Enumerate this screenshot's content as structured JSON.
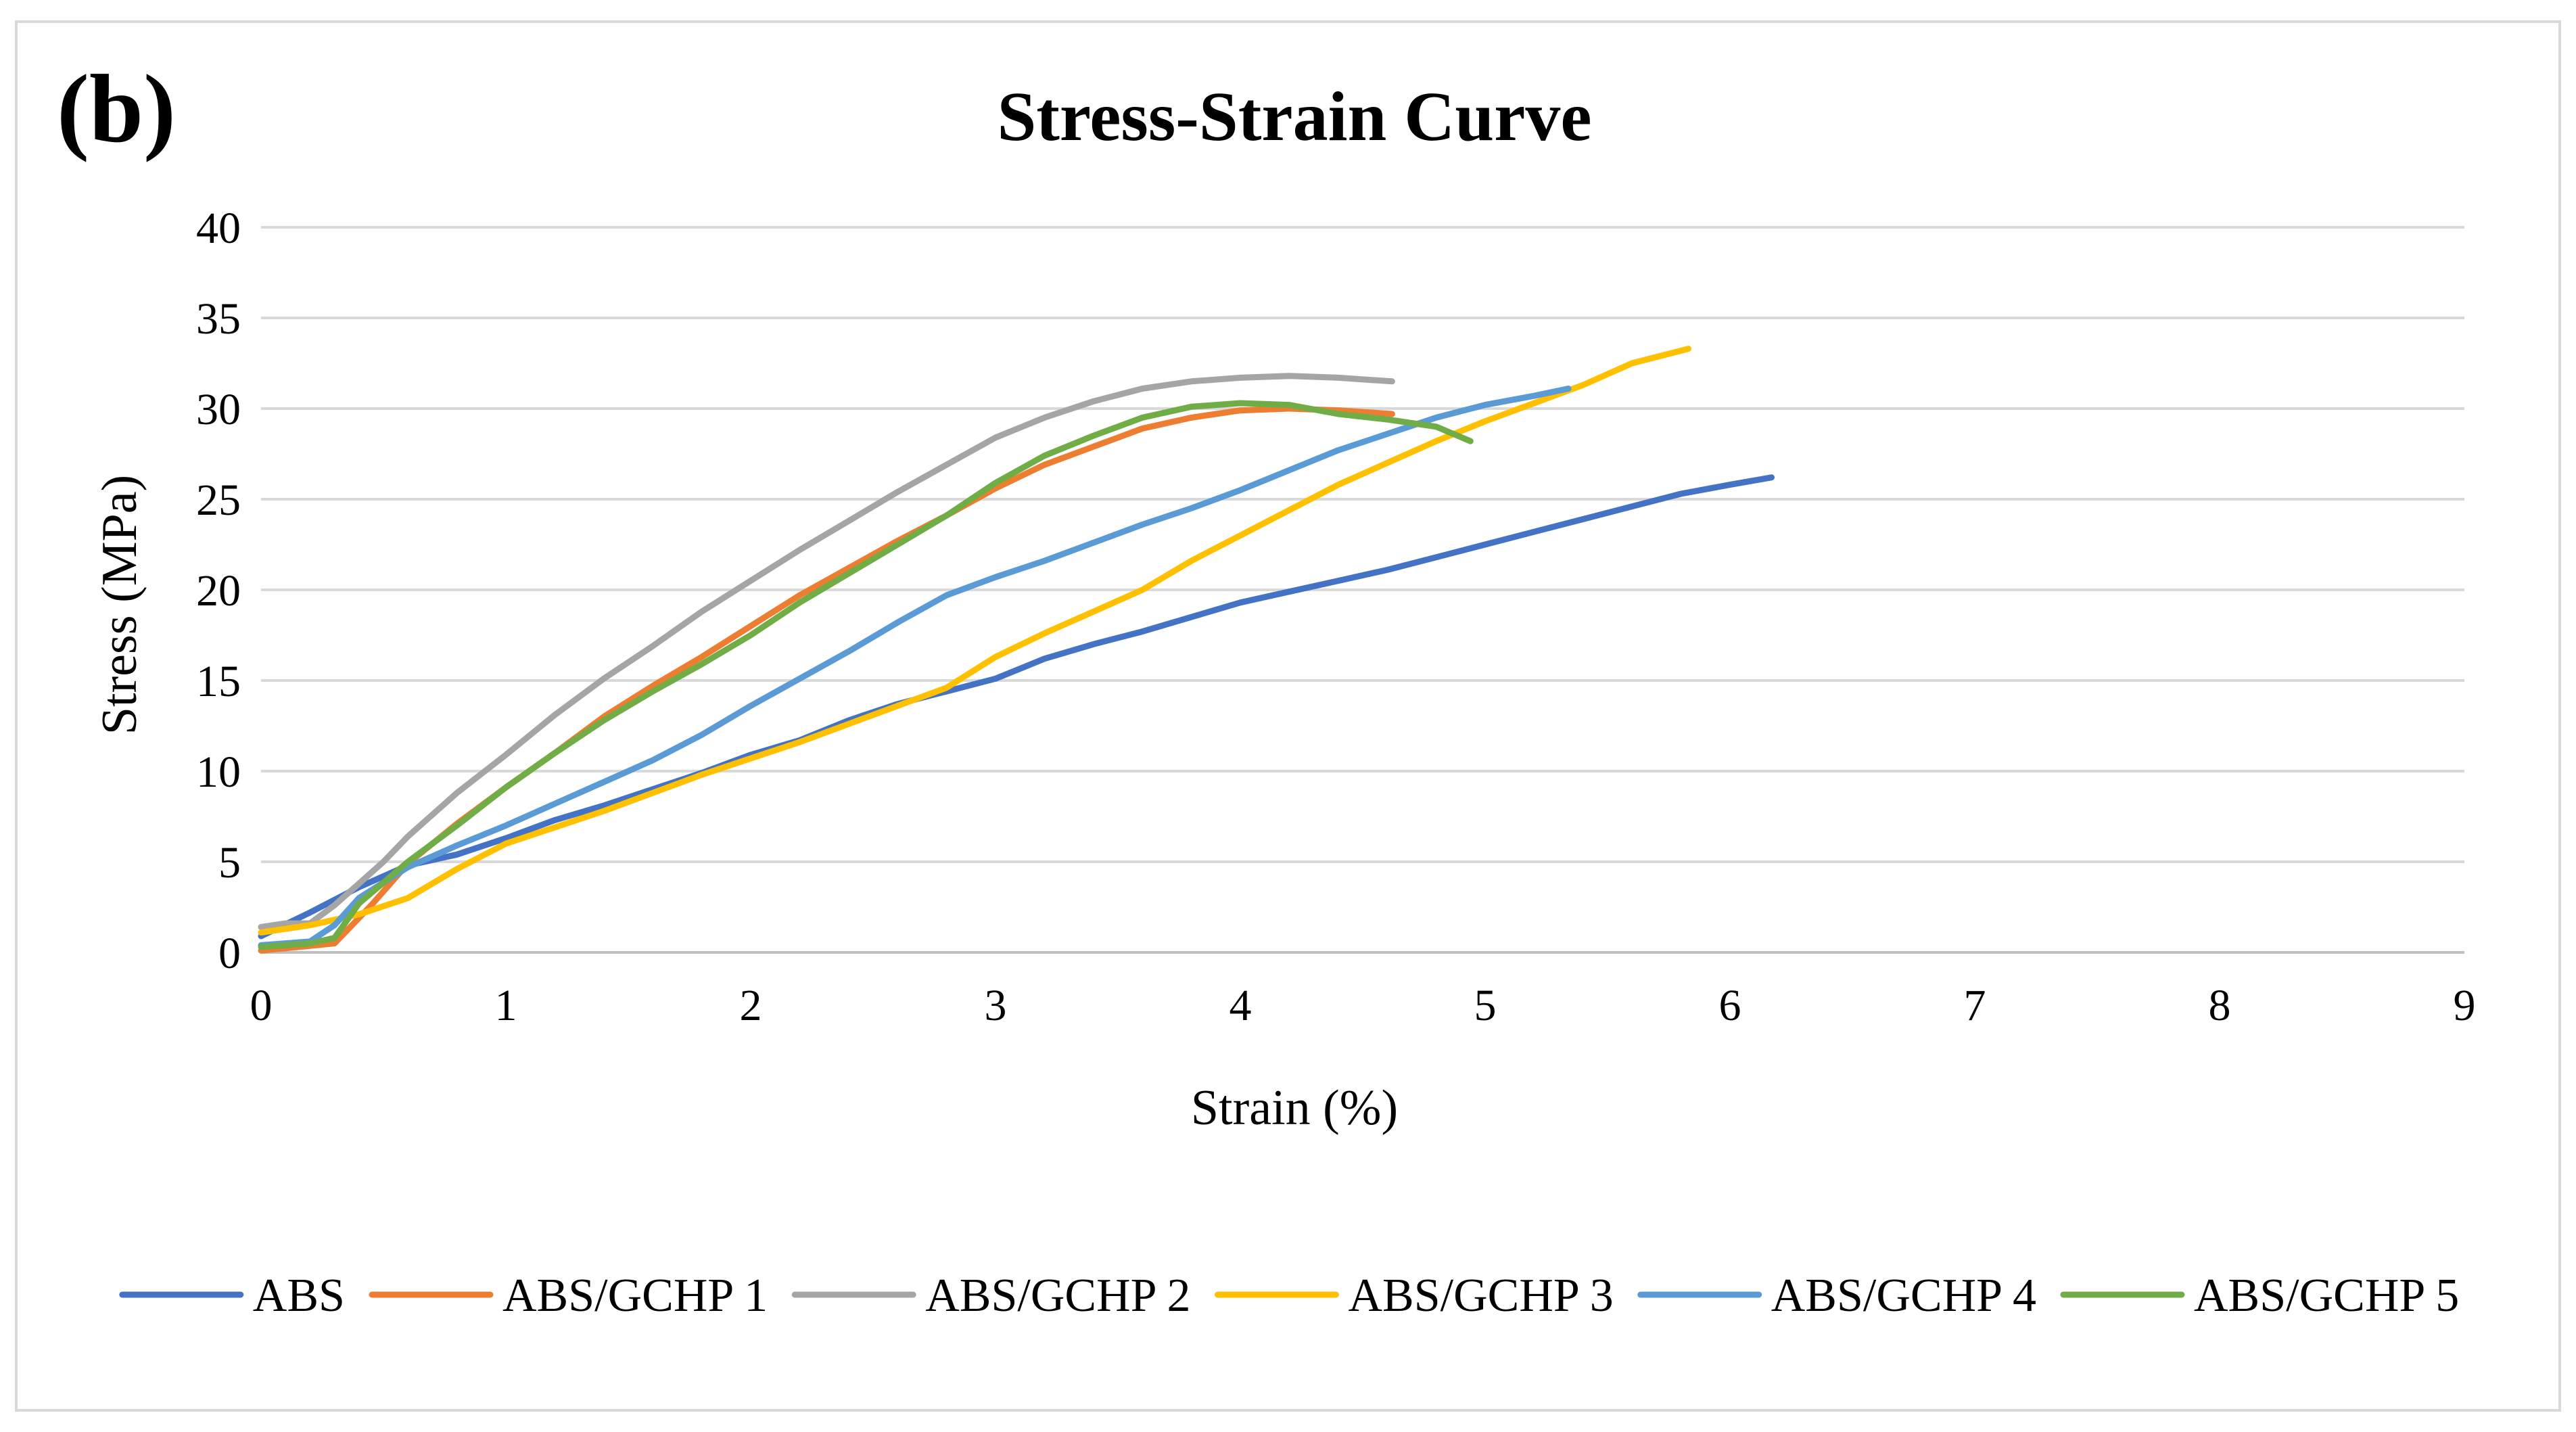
{
  "panel_label": "(b)",
  "chart_data": {
    "type": "line",
    "title": "Stress-Strain Curve",
    "xlabel": "Strain (%)",
    "ylabel": "Stress (MPa)",
    "xlim": [
      0,
      9
    ],
    "ylim": [
      0,
      40
    ],
    "x_ticks": [
      0,
      1,
      2,
      3,
      4,
      5,
      6,
      7,
      8,
      9
    ],
    "y_ticks": [
      0,
      5,
      10,
      15,
      20,
      25,
      30,
      35,
      40
    ],
    "grid": true,
    "legend_position": "bottom",
    "series": [
      {
        "name": "ABS",
        "color": "#4472c4",
        "x": [
          0,
          0.2,
          0.4,
          0.6,
          0.8,
          1.0,
          1.2,
          1.4,
          1.6,
          1.8,
          2.0,
          2.2,
          2.4,
          2.6,
          2.8,
          3.0,
          3.2,
          3.4,
          3.6,
          3.8,
          4.0,
          4.2,
          4.4,
          4.6,
          4.8,
          5.0,
          5.2,
          5.4,
          5.6,
          5.8,
          6.0,
          6.17
        ],
        "y": [
          0.9,
          2.2,
          3.6,
          4.8,
          5.4,
          6.3,
          7.3,
          8.1,
          9.0,
          9.9,
          10.9,
          11.7,
          12.8,
          13.7,
          14.4,
          15.1,
          16.2,
          17.0,
          17.7,
          18.5,
          19.3,
          19.9,
          20.5,
          21.1,
          21.8,
          22.5,
          23.2,
          23.9,
          24.6,
          25.3,
          25.8,
          26.2
        ]
      },
      {
        "name": "ABS/GCHP 1",
        "color": "#ed7d31",
        "x": [
          0,
          0.15,
          0.3,
          0.45,
          0.6,
          0.8,
          1.0,
          1.2,
          1.4,
          1.6,
          1.8,
          2.0,
          2.2,
          2.4,
          2.6,
          2.8,
          3.0,
          3.2,
          3.4,
          3.6,
          3.8,
          4.0,
          4.2,
          4.4,
          4.62
        ],
        "y": [
          0.1,
          0.3,
          0.5,
          2.6,
          4.9,
          7.1,
          9.1,
          11.0,
          13.0,
          14.7,
          16.3,
          18.0,
          19.7,
          21.2,
          22.7,
          24.1,
          25.6,
          26.9,
          27.9,
          28.9,
          29.5,
          29.9,
          30.0,
          29.9,
          29.7
        ]
      },
      {
        "name": "ABS/GCHP 2",
        "color": "#a5a5a5",
        "x": [
          0,
          0.1,
          0.2,
          0.3,
          0.4,
          0.5,
          0.6,
          0.8,
          1.0,
          1.2,
          1.4,
          1.6,
          1.8,
          2.0,
          2.2,
          2.4,
          2.6,
          2.8,
          3.0,
          3.2,
          3.4,
          3.6,
          3.8,
          4.0,
          4.2,
          4.4,
          4.62
        ],
        "y": [
          1.4,
          1.6,
          1.6,
          2.6,
          3.8,
          5.0,
          6.4,
          8.8,
          10.9,
          13.1,
          15.1,
          16.9,
          18.8,
          20.5,
          22.2,
          23.8,
          25.4,
          26.9,
          28.4,
          29.5,
          30.4,
          31.1,
          31.5,
          31.7,
          31.8,
          31.7,
          31.5
        ]
      },
      {
        "name": "ABS/GCHP 3",
        "color": "#ffc000",
        "x": [
          0,
          0.2,
          0.4,
          0.6,
          0.8,
          1.0,
          1.2,
          1.4,
          1.6,
          1.8,
          2.0,
          2.2,
          2.4,
          2.6,
          2.8,
          3.0,
          3.2,
          3.4,
          3.6,
          3.8,
          4.0,
          4.2,
          4.4,
          4.6,
          4.8,
          5.0,
          5.2,
          5.4,
          5.6,
          5.83
        ],
        "y": [
          1.1,
          1.5,
          2.1,
          3.0,
          4.6,
          6.0,
          6.9,
          7.8,
          8.8,
          9.8,
          10.7,
          11.6,
          12.6,
          13.6,
          14.6,
          16.3,
          17.6,
          18.8,
          20.0,
          21.6,
          23.0,
          24.4,
          25.8,
          27.0,
          28.2,
          29.3,
          30.3,
          31.3,
          32.5,
          33.3
        ]
      },
      {
        "name": "ABS/GCHP 4",
        "color": "#5b9bd5",
        "x": [
          0,
          0.2,
          0.3,
          0.4,
          0.6,
          0.8,
          1.0,
          1.2,
          1.4,
          1.6,
          1.8,
          2.0,
          2.2,
          2.4,
          2.6,
          2.8,
          3.0,
          3.2,
          3.4,
          3.6,
          3.8,
          4.0,
          4.2,
          4.4,
          4.6,
          4.8,
          5.0,
          5.2,
          5.34
        ],
        "y": [
          0.4,
          0.6,
          1.5,
          3.0,
          4.7,
          5.9,
          7.0,
          8.2,
          9.4,
          10.6,
          12.0,
          13.6,
          15.1,
          16.6,
          18.2,
          19.7,
          20.7,
          21.6,
          22.6,
          23.6,
          24.5,
          25.5,
          26.6,
          27.7,
          28.6,
          29.5,
          30.2,
          30.7,
          31.1
        ]
      },
      {
        "name": "ABS/GCHP 5",
        "color": "#70ad47",
        "x": [
          0,
          0.2,
          0.3,
          0.4,
          0.6,
          0.8,
          1.0,
          1.2,
          1.4,
          1.6,
          1.8,
          2.0,
          2.2,
          2.4,
          2.6,
          2.8,
          3.0,
          3.2,
          3.4,
          3.6,
          3.8,
          4.0,
          4.2,
          4.4,
          4.6,
          4.8,
          4.94
        ],
        "y": [
          0.3,
          0.5,
          0.8,
          2.7,
          5.0,
          7.0,
          9.1,
          11.0,
          12.8,
          14.4,
          15.9,
          17.5,
          19.3,
          20.9,
          22.5,
          24.1,
          25.9,
          27.4,
          28.5,
          29.5,
          30.1,
          30.3,
          30.2,
          29.7,
          29.4,
          29.0,
          28.2
        ]
      }
    ]
  }
}
